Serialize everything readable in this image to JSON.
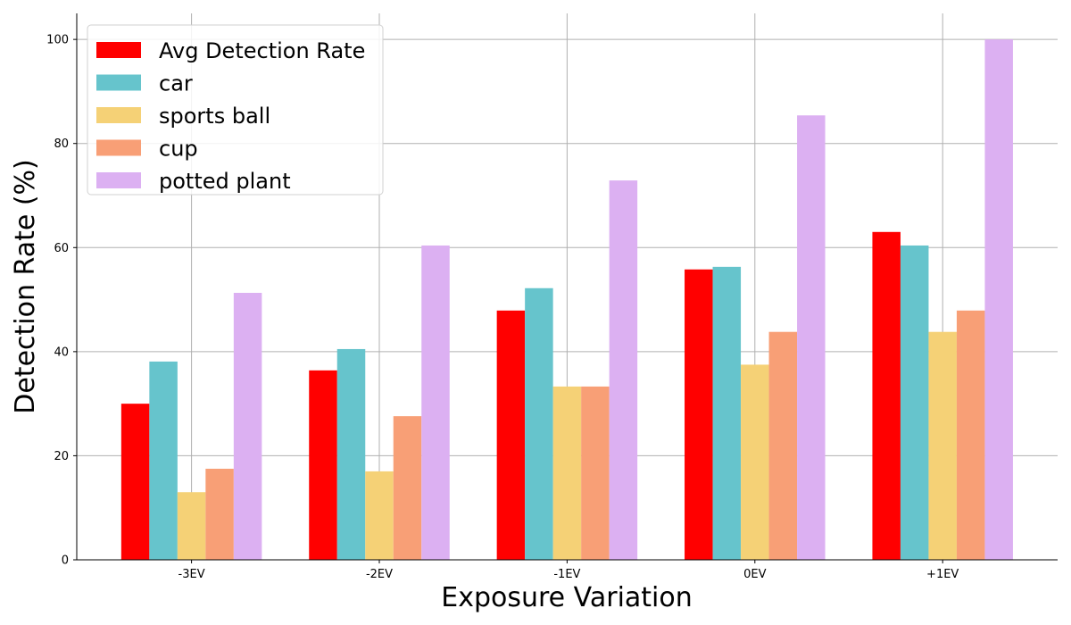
{
  "chart_data": {
    "type": "bar",
    "title": "",
    "xlabel": "Exposure Variation",
    "ylabel": "Detection Rate (%)",
    "categories": [
      "-3EV",
      "-2EV",
      "-1EV",
      "0EV",
      "+1EV"
    ],
    "ylim": [
      0,
      105
    ],
    "yticks": [
      0,
      20,
      40,
      60,
      80,
      100
    ],
    "grid": true,
    "legend_position": "top-left",
    "series": [
      {
        "name": "Avg Detection Rate",
        "color": "#ff0000",
        "values": [
          30.0,
          36.4,
          47.9,
          55.8,
          63.0
        ]
      },
      {
        "name": "car",
        "color": "#66c4cc",
        "values": [
          38.1,
          40.5,
          52.2,
          56.3,
          60.4
        ]
      },
      {
        "name": "sports ball",
        "color": "#f5d176",
        "values": [
          13.0,
          17.0,
          33.3,
          37.5,
          43.8
        ]
      },
      {
        "name": "cup",
        "color": "#f89f76",
        "values": [
          17.5,
          27.6,
          33.3,
          43.8,
          47.9
        ]
      },
      {
        "name": "potted plant",
        "color": "#dcb0f2",
        "values": [
          51.3,
          60.4,
          72.9,
          85.4,
          100.0
        ]
      }
    ]
  }
}
